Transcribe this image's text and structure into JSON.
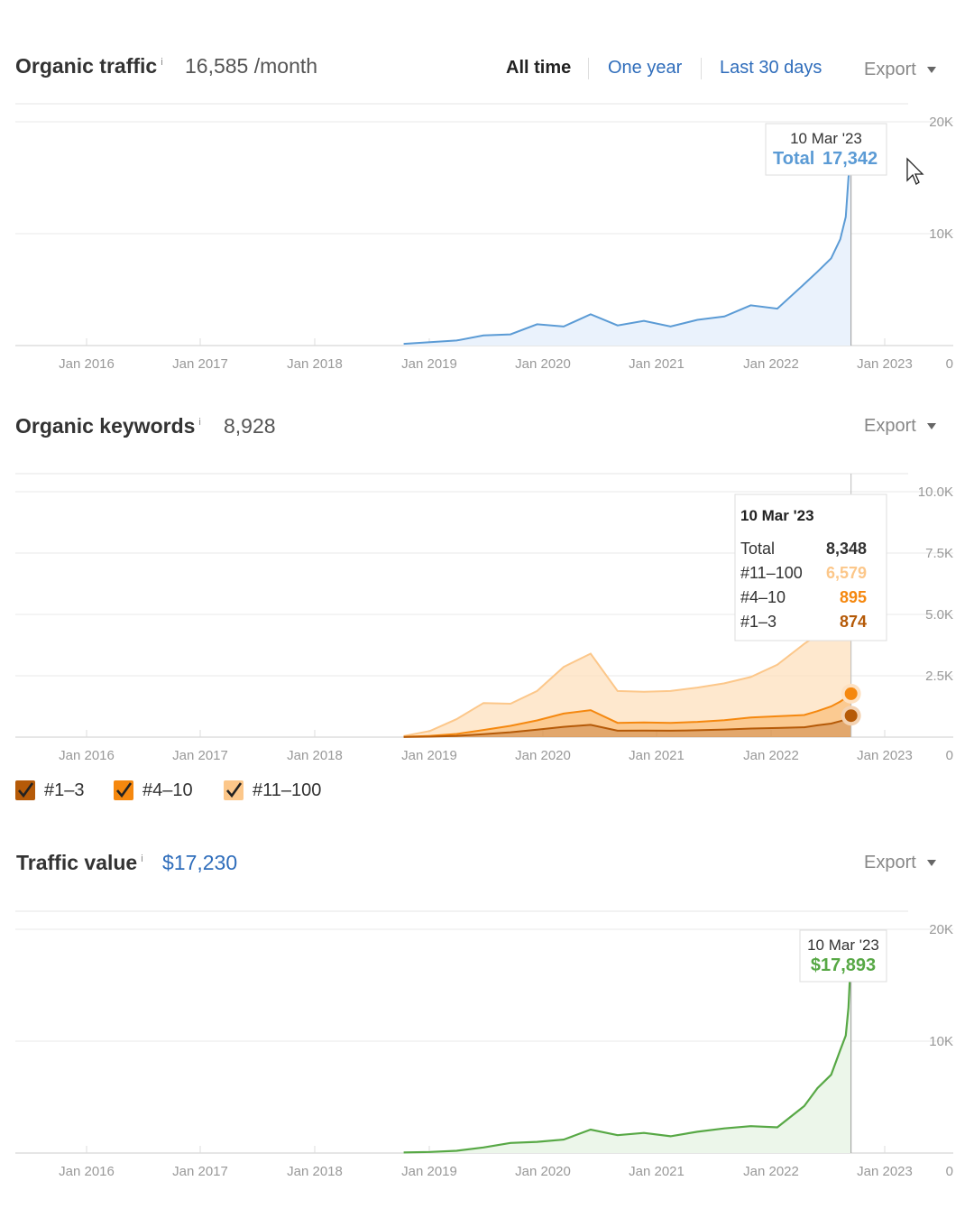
{
  "traffic": {
    "title": "Organic traffic",
    "info": "i",
    "metric": "16,585 /month",
    "ranges": [
      "All time",
      "One year",
      "Last 30 days"
    ],
    "export": "Export"
  },
  "keywords": {
    "title": "Organic keywords",
    "info": "i",
    "metric": "8,928",
    "export": "Export",
    "legend": [
      {
        "label": "#1–3",
        "color": "#b55a08"
      },
      {
        "label": "#4–10",
        "color": "#f5880f"
      },
      {
        "label": "#11–100",
        "color": "#fcc78a"
      }
    ]
  },
  "value": {
    "title": "Traffic value",
    "info": "i",
    "metric": "$17,230",
    "export": "Export"
  },
  "colors": {
    "traffic": "#5b9bd5",
    "value": "#57a845",
    "kw_1_3": "#b55a08",
    "kw_4_10": "#f5880f",
    "kw_11_100": "#fcc78a"
  },
  "chart_data": [
    {
      "id": "traffic",
      "type": "area",
      "title": "Organic traffic",
      "x_ticks": [
        "Jan 2016",
        "Jan 2017",
        "Jan 2018",
        "Jan 2019",
        "Jan 2020",
        "Jan 2021",
        "Jan 2022",
        "Jan 2023"
      ],
      "y_ticks": [
        "20K",
        "10K",
        "0"
      ],
      "ylim": [
        0,
        20000
      ],
      "xlim": [
        "2015-05-15",
        "2023-09-15"
      ],
      "series": [
        {
          "name": "Total",
          "x": [
            "2019-01-01",
            "2019-04-01",
            "2019-07-01",
            "2019-10-01",
            "2020-01-01",
            "2020-04-01",
            "2020-07-01",
            "2020-10-01",
            "2021-01-01",
            "2021-04-01",
            "2021-07-01",
            "2021-10-01",
            "2022-01-01",
            "2022-04-01",
            "2022-07-01",
            "2022-10-01",
            "2022-11-15",
            "2023-01-01",
            "2023-02-01",
            "2023-02-20",
            "2023-03-01",
            "2023-03-10"
          ],
          "values": [
            150,
            300,
            450,
            900,
            1000,
            1900,
            1700,
            2800,
            1800,
            2200,
            1700,
            2300,
            2600,
            3600,
            3300,
            5500,
            6600,
            7800,
            9500,
            11500,
            15000,
            17342
          ]
        }
      ],
      "tooltip": {
        "date": "10 Mar '23",
        "label": "Total",
        "value": "17,342"
      }
    },
    {
      "id": "keywords",
      "type": "area",
      "title": "Organic keywords",
      "x_ticks": [
        "Jan 2016",
        "Jan 2017",
        "Jan 2018",
        "Jan 2019",
        "Jan 2020",
        "Jan 2021",
        "Jan 2022",
        "Jan 2023"
      ],
      "y_ticks": [
        "10.0K",
        "7.5K",
        "5.0K",
        "2.5K",
        "0"
      ],
      "ylim": [
        0,
        10000
      ],
      "xlim": [
        "2015-05-15",
        "2023-09-15"
      ],
      "x": [
        "2019-01-01",
        "2019-04-01",
        "2019-07-01",
        "2019-10-01",
        "2020-01-01",
        "2020-04-01",
        "2020-07-01",
        "2020-10-01",
        "2021-01-01",
        "2021-04-01",
        "2021-07-01",
        "2021-10-01",
        "2022-01-01",
        "2022-04-01",
        "2022-07-01",
        "2022-10-01",
        "2022-11-15",
        "2023-01-01",
        "2023-02-01",
        "2023-02-20",
        "2023-03-01",
        "2023-03-10"
      ],
      "series": [
        {
          "name": "#1–3",
          "values": [
            5,
            20,
            50,
            120,
            200,
            300,
            420,
            500,
            260,
            270,
            260,
            280,
            310,
            350,
            370,
            400,
            480,
            550,
            650,
            720,
            800,
            874
          ]
        },
        {
          "name": "#4–10",
          "values": [
            10,
            30,
            80,
            170,
            260,
            380,
            540,
            600,
            320,
            330,
            320,
            340,
            380,
            450,
            480,
            500,
            580,
            700,
            800,
            880,
            900,
            895
          ]
        },
        {
          "name": "#11–100",
          "values": [
            30,
            200,
            600,
            1100,
            900,
            1200,
            1900,
            2300,
            1300,
            1250,
            1300,
            1400,
            1500,
            1650,
            2100,
            2900,
            3100,
            3600,
            4000,
            5500,
            6200,
            6579
          ]
        }
      ],
      "tooltip": {
        "date": "10 Mar '23",
        "rows": [
          {
            "label": "Total",
            "value": "8,348"
          },
          {
            "label": "#11–100",
            "value": "6,579"
          },
          {
            "label": "#4–10",
            "value": "895"
          },
          {
            "label": "#1–3",
            "value": "874"
          }
        ]
      }
    },
    {
      "id": "value",
      "type": "area",
      "title": "Traffic value",
      "x_ticks": [
        "Jan 2016",
        "Jan 2017",
        "Jan 2018",
        "Jan 2019",
        "Jan 2020",
        "Jan 2021",
        "Jan 2022",
        "Jan 2023"
      ],
      "y_ticks": [
        "20K",
        "10K",
        "0"
      ],
      "ylim": [
        0,
        20000
      ],
      "xlim": [
        "2015-05-15",
        "2023-09-15"
      ],
      "series": [
        {
          "name": "Value",
          "x": [
            "2019-01-01",
            "2019-04-01",
            "2019-07-01",
            "2019-10-01",
            "2020-01-01",
            "2020-04-01",
            "2020-07-01",
            "2020-10-01",
            "2021-01-01",
            "2021-04-01",
            "2021-07-01",
            "2021-10-01",
            "2022-01-01",
            "2022-04-01",
            "2022-07-01",
            "2022-10-01",
            "2022-11-15",
            "2023-01-01",
            "2023-02-01",
            "2023-02-20",
            "2023-03-01",
            "2023-03-10"
          ],
          "values": [
            50,
            100,
            200,
            500,
            900,
            1000,
            1200,
            2100,
            1600,
            1800,
            1500,
            1900,
            2200,
            2400,
            2300,
            4200,
            5800,
            7000,
            9200,
            10500,
            13000,
            17893
          ]
        }
      ],
      "tooltip": {
        "date": "10 Mar '23",
        "value": "$17,893"
      }
    }
  ]
}
